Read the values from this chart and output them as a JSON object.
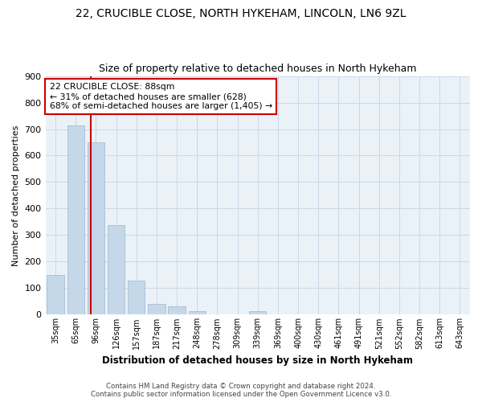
{
  "title1": "22, CRUCIBLE CLOSE, NORTH HYKEHAM, LINCOLN, LN6 9ZL",
  "title2": "Size of property relative to detached houses in North Hykeham",
  "xlabel": "Distribution of detached houses by size in North Hykeham",
  "ylabel": "Number of detached properties",
  "categories": [
    "35sqm",
    "65sqm",
    "96sqm",
    "126sqm",
    "157sqm",
    "187sqm",
    "217sqm",
    "248sqm",
    "278sqm",
    "309sqm",
    "339sqm",
    "369sqm",
    "400sqm",
    "430sqm",
    "461sqm",
    "491sqm",
    "521sqm",
    "552sqm",
    "582sqm",
    "613sqm",
    "643sqm"
  ],
  "values": [
    150,
    715,
    650,
    338,
    128,
    40,
    30,
    12,
    0,
    0,
    12,
    0,
    0,
    0,
    0,
    0,
    0,
    0,
    0,
    0,
    0
  ],
  "bar_color": "#c5d8ea",
  "bar_edge_color": "#9ab8cc",
  "annotation_line1": "22 CRUCIBLE CLOSE: 88sqm",
  "annotation_line2": "← 31% of detached houses are smaller (628)",
  "annotation_line3": "68% of semi-detached houses are larger (1,405) →",
  "annotation_box_color": "#ffffff",
  "annotation_box_edge": "#cc0000",
  "red_line_color": "#cc0000",
  "ylim": [
    0,
    900
  ],
  "yticks": [
    0,
    100,
    200,
    300,
    400,
    500,
    600,
    700,
    800,
    900
  ],
  "footer1": "Contains HM Land Registry data © Crown copyright and database right 2024.",
  "footer2": "Contains public sector information licensed under the Open Government Licence v3.0.",
  "bg_color": "#ffffff",
  "plot_bg_color": "#eaf2f8",
  "grid_color": "#c8d8e8",
  "title1_fontsize": 10,
  "title2_fontsize": 9
}
